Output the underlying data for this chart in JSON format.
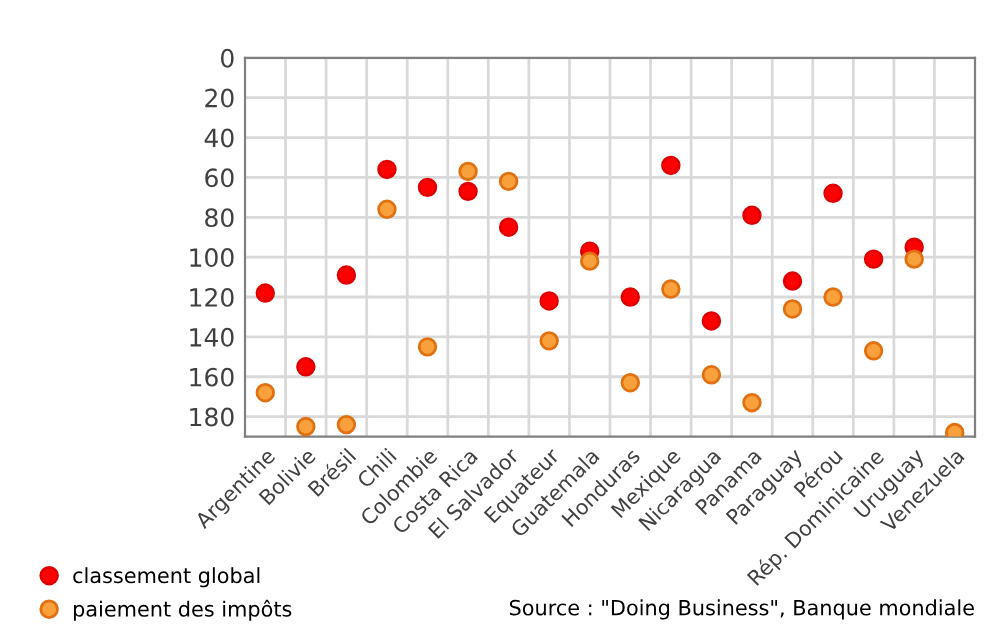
{
  "chart_data": {
    "type": "scatter",
    "categories": [
      "Argentine",
      "Bolivie",
      "Brésil",
      "Chili",
      "Colombie",
      "Costa Rica",
      "El Salvador",
      "Equateur",
      "Guatemala",
      "Honduras",
      "Mexique",
      "Nicaragua",
      "Panama",
      "Paraguay",
      "Pérou",
      "Rép. Dominicaine",
      "Uruguay",
      "Venezuela"
    ],
    "series": [
      {
        "name": "classement global",
        "color": "#ff0000",
        "values": [
          118,
          155,
          109,
          56,
          65,
          67,
          85,
          122,
          97,
          120,
          54,
          132,
          79,
          112,
          68,
          101,
          95,
          null
        ]
      },
      {
        "name": "paiement des impôts",
        "color": "#f7a03c",
        "values": [
          168,
          185,
          184,
          76,
          145,
          57,
          62,
          142,
          102,
          163,
          116,
          159,
          173,
          126,
          120,
          147,
          101,
          188
        ]
      }
    ],
    "ylim": [
      190,
      0
    ],
    "yticks": [
      0,
      20,
      40,
      60,
      80,
      100,
      120,
      140,
      160,
      180
    ],
    "grid": true,
    "legend": "bottom left",
    "marker": "circle",
    "annotations": [
      "Source : \"Doing Business\", Banque mondiale"
    ]
  }
}
